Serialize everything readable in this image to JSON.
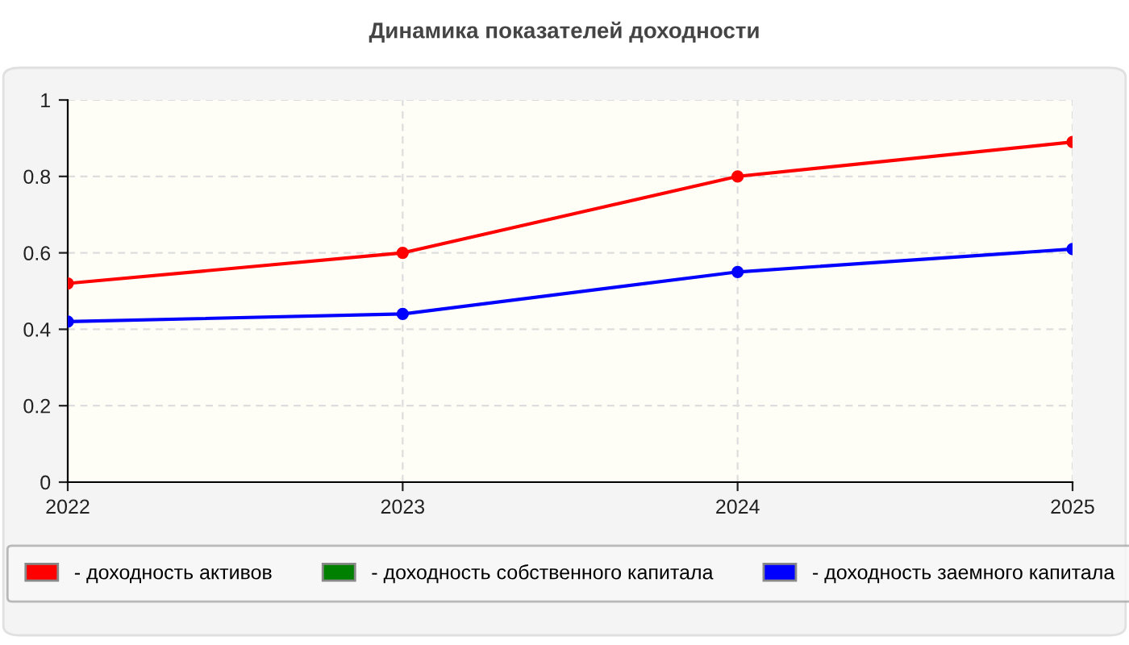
{
  "chart_data": {
    "type": "line",
    "title": "Динамика показателей доходности",
    "x": [
      2022,
      2023,
      2024,
      2025
    ],
    "xlim": [
      2022,
      2025
    ],
    "xticks": [
      2022,
      2023,
      2024,
      2025
    ],
    "ylim": [
      0,
      1
    ],
    "yticks": [
      0,
      0.2,
      0.4,
      0.6,
      0.8,
      1
    ],
    "series": [
      {
        "name": "- доходность активов",
        "color": "#ff0000",
        "values": [
          0.52,
          0.6,
          0.8,
          0.89
        ]
      },
      {
        "name": "- доходность собственного капитала",
        "color": "#008000",
        "values": [
          null,
          null,
          null,
          null
        ]
      },
      {
        "name": "- доходность заемного капитала",
        "color": "#0000ff",
        "values": [
          0.42,
          0.44,
          0.55,
          0.61
        ]
      }
    ],
    "marker": "circle",
    "line_style": "solid",
    "grid": true,
    "legend": "bottom"
  }
}
